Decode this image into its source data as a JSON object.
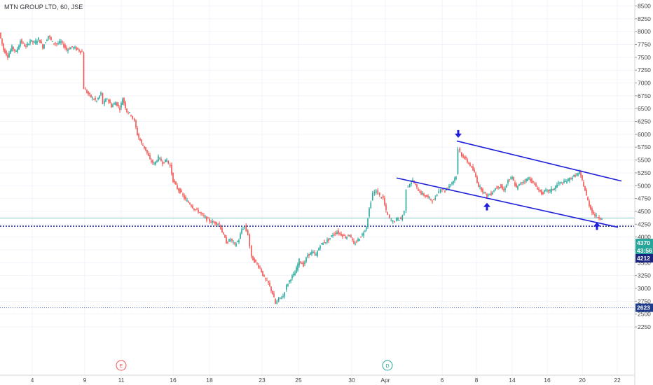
{
  "title": "MTN GROUP LTD, 60, JSE",
  "colors": {
    "up": "#26a69a",
    "down": "#ef5350",
    "trendline": "#1e1edb",
    "support_line": "#1a237e",
    "current_price_line": "#80cbc4",
    "low_line": "#5c6bc0",
    "tag_current": "#26a69a",
    "tag_support": "#1a237e",
    "tag_low": "#1e3a8a",
    "arrow": "#1e1edb",
    "grid": "#f0f3fa",
    "event_earnings": "#ef5350",
    "event_dividend": "#26a69a"
  },
  "chart_data": {
    "type": "candlestick",
    "title": "MTN GROUP LTD, 60, JSE",
    "y_axis": {
      "position": "right",
      "ylim": [
        2125,
        8600
      ],
      "ticks": [
        2250,
        2500,
        2750,
        3000,
        3250,
        3500,
        3750,
        4000,
        4250,
        4500,
        4750,
        5000,
        5250,
        5500,
        5750,
        6000,
        6250,
        6500,
        6750,
        7000,
        7250,
        7500,
        7750,
        8000,
        8250,
        8500
      ]
    },
    "x_axis": {
      "labels": [
        "4",
        "9",
        "11",
        "16",
        "18",
        "23",
        "25",
        "30",
        "Apr",
        "6",
        "8",
        "14",
        "16",
        "20",
        "22"
      ]
    },
    "price_tags": [
      {
        "label": "4370",
        "value": 4370,
        "kind": "current"
      },
      {
        "label": "43:56",
        "value": 4260,
        "kind": "countdown"
      },
      {
        "label": "4212",
        "value": 4212,
        "kind": "support"
      },
      {
        "label": "2623",
        "value": 2623,
        "kind": "low"
      }
    ],
    "horizontal_lines": [
      {
        "name": "current-price",
        "value": 4370,
        "style": "solid"
      },
      {
        "name": "support",
        "value": 4212,
        "style": "dotted"
      },
      {
        "name": "period-low",
        "value": 2623,
        "style": "dotted"
      }
    ],
    "trendlines": [
      {
        "name": "channel-upper",
        "x_start": 652,
        "y_start": 5870,
        "x_end": 887,
        "y_end": 5090
      },
      {
        "name": "channel-lower",
        "x_start": 566,
        "y_start": 5150,
        "x_end": 882,
        "y_end": 4190
      }
    ],
    "arrows": [
      {
        "name": "arrow-down",
        "x_index": 654,
        "value": 6000,
        "direction": "down"
      },
      {
        "name": "arrow-up-1",
        "x_index": 695,
        "value": 4600,
        "direction": "up"
      },
      {
        "name": "arrow-up-2",
        "x_index": 852,
        "value": 4220,
        "direction": "up"
      }
    ],
    "event_markers": [
      {
        "label": "E",
        "x_index": 173,
        "kind": "earnings"
      },
      {
        "label": "D",
        "x_index": 553,
        "kind": "dividend"
      }
    ],
    "price_path": [
      [
        0,
        7980
      ],
      [
        6,
        7650
      ],
      [
        12,
        7520
      ],
      [
        18,
        7700
      ],
      [
        24,
        7600
      ],
      [
        30,
        7820
      ],
      [
        38,
        7700
      ],
      [
        44,
        7830
      ],
      [
        50,
        7780
      ],
      [
        56,
        7860
      ],
      [
        62,
        7700
      ],
      [
        70,
        7920
      ],
      [
        76,
        7790
      ],
      [
        82,
        7760
      ],
      [
        88,
        7800
      ],
      [
        96,
        7650
      ],
      [
        104,
        7700
      ],
      [
        112,
        7650
      ],
      [
        118,
        7600
      ],
      [
        121,
        6900
      ],
      [
        127,
        6780
      ],
      [
        133,
        6700
      ],
      [
        139,
        6650
      ],
      [
        145,
        6800
      ],
      [
        148,
        6600
      ],
      [
        154,
        6700
      ],
      [
        160,
        6550
      ],
      [
        166,
        6620
      ],
      [
        172,
        6500
      ],
      [
        176,
        6700
      ],
      [
        182,
        6450
      ],
      [
        188,
        6380
      ],
      [
        193,
        6250
      ],
      [
        197,
        6000
      ],
      [
        203,
        5820
      ],
      [
        209,
        5700
      ],
      [
        215,
        5500
      ],
      [
        221,
        5420
      ],
      [
        227,
        5550
      ],
      [
        233,
        5450
      ],
      [
        239,
        5500
      ],
      [
        244,
        5380
      ],
      [
        248,
        5100
      ],
      [
        254,
        4950
      ],
      [
        260,
        4850
      ],
      [
        266,
        4720
      ],
      [
        272,
        4650
      ],
      [
        278,
        4550
      ],
      [
        284,
        4500
      ],
      [
        290,
        4420
      ],
      [
        296,
        4350
      ],
      [
        302,
        4300
      ],
      [
        308,
        4280
      ],
      [
        314,
        4250
      ],
      [
        318,
        4100
      ],
      [
        324,
        3900
      ],
      [
        330,
        3950
      ],
      [
        336,
        3850
      ],
      [
        342,
        3950
      ],
      [
        346,
        4150
      ],
      [
        350,
        4200
      ],
      [
        355,
        4050
      ],
      [
        360,
        3600
      ],
      [
        366,
        3500
      ],
      [
        372,
        3400
      ],
      [
        378,
        3200
      ],
      [
        384,
        3100
      ],
      [
        390,
        2900
      ],
      [
        394,
        2700
      ],
      [
        399,
        2800
      ],
      [
        405,
        2850
      ],
      [
        410,
        3050
      ],
      [
        416,
        3200
      ],
      [
        422,
        3300
      ],
      [
        428,
        3550
      ],
      [
        434,
        3450
      ],
      [
        440,
        3650
      ],
      [
        446,
        3700
      ],
      [
        452,
        3650
      ],
      [
        458,
        3850
      ],
      [
        464,
        3900
      ],
      [
        470,
        3950
      ],
      [
        476,
        4050
      ],
      [
        482,
        4100
      ],
      [
        488,
        4050
      ],
      [
        494,
        4000
      ],
      [
        500,
        4050
      ],
      [
        506,
        3850
      ],
      [
        512,
        3950
      ],
      [
        518,
        4050
      ],
      [
        524,
        4200
      ],
      [
        528,
        4550
      ],
      [
        533,
        4850
      ],
      [
        538,
        4900
      ],
      [
        543,
        4800
      ],
      [
        548,
        4750
      ],
      [
        552,
        4500
      ],
      [
        557,
        4350
      ],
      [
        562,
        4300
      ],
      [
        567,
        4350
      ],
      [
        573,
        4350
      ],
      [
        578,
        4500
      ],
      [
        581,
        4950
      ],
      [
        586,
        5050
      ],
      [
        590,
        5100
      ],
      [
        596,
        4950
      ],
      [
        602,
        4850
      ],
      [
        608,
        4800
      ],
      [
        614,
        4750
      ],
      [
        620,
        4700
      ],
      [
        625,
        4850
      ],
      [
        630,
        4950
      ],
      [
        636,
        4900
      ],
      [
        642,
        5000
      ],
      [
        648,
        5100
      ],
      [
        652,
        5200
      ],
      [
        655,
        5700
      ],
      [
        660,
        5600
      ],
      [
        666,
        5500
      ],
      [
        672,
        5400
      ],
      [
        678,
        5250
      ],
      [
        684,
        5000
      ],
      [
        690,
        4900
      ],
      [
        696,
        4800
      ],
      [
        702,
        4850
      ],
      [
        708,
        4950
      ],
      [
        714,
        5000
      ],
      [
        720,
        4900
      ],
      [
        726,
        5100
      ],
      [
        732,
        5150
      ],
      [
        738,
        4950
      ],
      [
        744,
        5050
      ],
      [
        750,
        5100
      ],
      [
        756,
        5150
      ],
      [
        762,
        5050
      ],
      [
        768,
        4950
      ],
      [
        774,
        4850
      ],
      [
        780,
        4900
      ],
      [
        786,
        4900
      ],
      [
        792,
        4950
      ],
      [
        798,
        5050
      ],
      [
        804,
        5050
      ],
      [
        810,
        5100
      ],
      [
        816,
        5150
      ],
      [
        822,
        5200
      ],
      [
        828,
        5250
      ],
      [
        832,
        5100
      ],
      [
        836,
        4900
      ],
      [
        840,
        4700
      ],
      [
        844,
        4550
      ],
      [
        848,
        4450
      ],
      [
        852,
        4400
      ],
      [
        856,
        4380
      ],
      [
        860,
        4370
      ]
    ]
  }
}
